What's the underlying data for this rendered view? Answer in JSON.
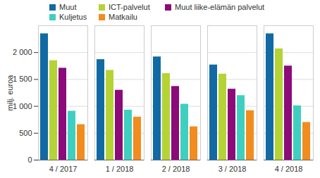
{
  "chart_data": {
    "type": "bar",
    "categories": [
      "4 / 2017",
      "1 / 2018",
      "2 / 2018",
      "3 / 2018",
      "4 / 2018"
    ],
    "series": [
      {
        "name": "Muut",
        "color": "#116aa3",
        "values": [
          2350,
          1870,
          1920,
          1770,
          2350
        ]
      },
      {
        "name": "ICT-palvelut",
        "color": "#b5d334",
        "values": [
          1850,
          1670,
          1610,
          1600,
          2070
        ]
      },
      {
        "name": "Muut liike-elämän palvelut",
        "color": "#8c0a7a",
        "values": [
          1710,
          1300,
          1370,
          1320,
          1750
        ]
      },
      {
        "name": "Kuljetus",
        "color": "#3fcfc0",
        "values": [
          910,
          930,
          1040,
          1200,
          1010
        ]
      },
      {
        "name": "Matkailu",
        "color": "#f28c1e",
        "values": [
          660,
          800,
          620,
          920,
          700
        ]
      }
    ],
    "y_label": "milj. euroa",
    "ylim": [
      0,
      2500
    ],
    "yticks": [
      0,
      500,
      {
        "value": 1000,
        "label": "1 000"
      },
      {
        "value": 1500,
        "label": "1 500"
      },
      {
        "value": 2000,
        "label": "2 000"
      }
    ],
    "grid": true,
    "legend": "top"
  }
}
